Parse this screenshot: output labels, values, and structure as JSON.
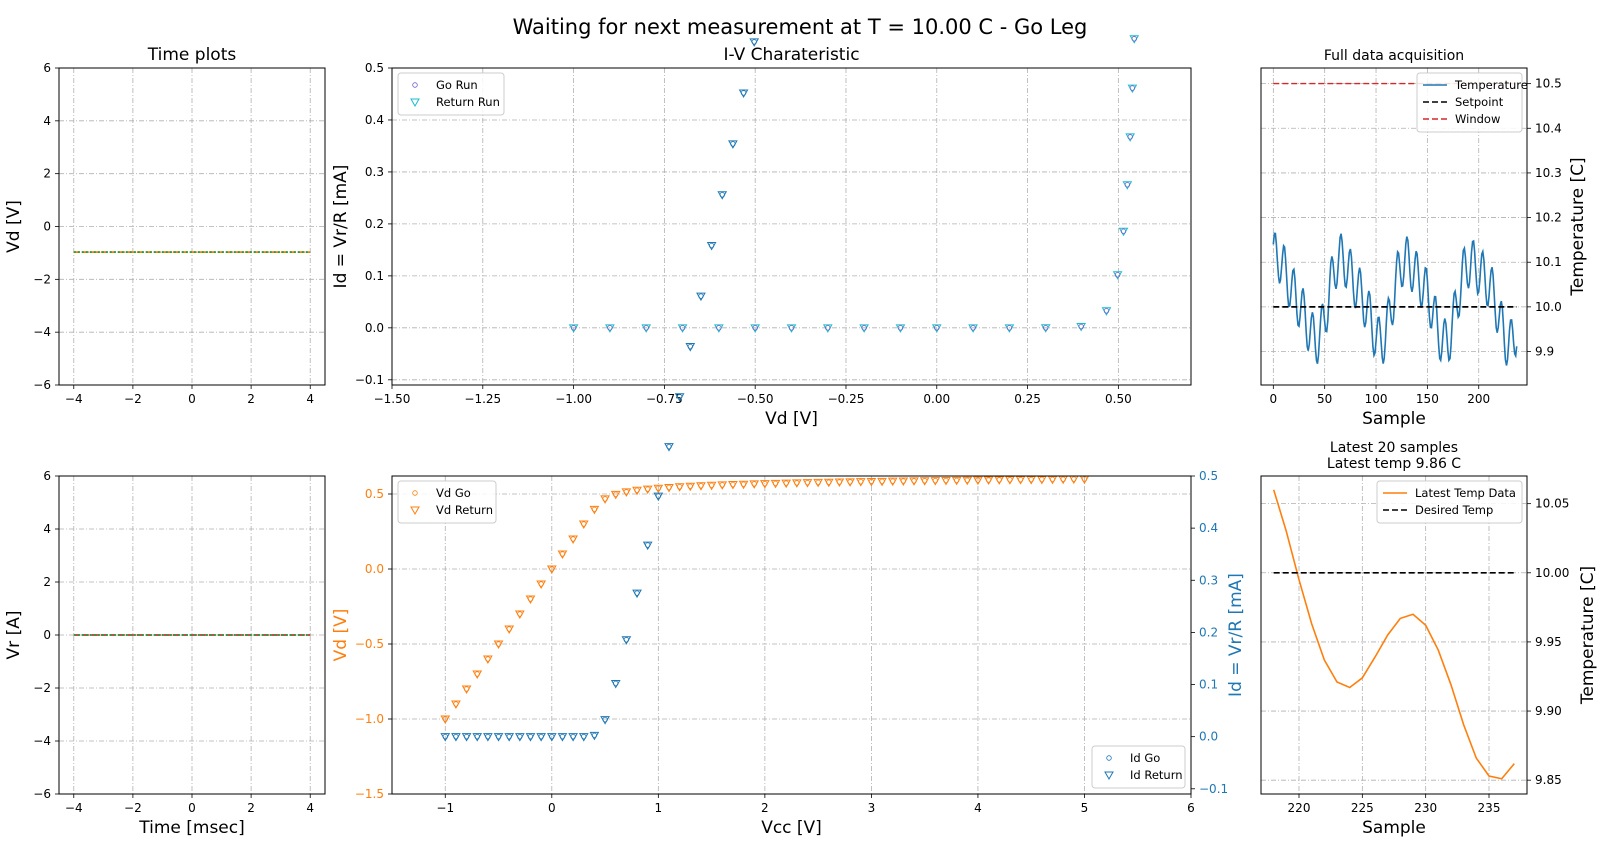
{
  "suptitle": "Waiting for next measurement at T = 10.00 C - Go Leg",
  "chart_data": [
    {
      "id": "time_vd",
      "type": "line",
      "title": "Time plots",
      "xlabel": "",
      "ylabel": "Vd [V]",
      "xlim": [
        -4.5,
        4.5
      ],
      "ylim": [
        -6,
        6
      ],
      "xticks": [
        -4,
        -2,
        0,
        2,
        4
      ],
      "xtick_labels": [
        "−4",
        "−2",
        "0",
        "2",
        "4"
      ],
      "yticks": [
        -6,
        -4,
        -2,
        0,
        2,
        4,
        6
      ],
      "ytick_labels": [
        "−6",
        "−4",
        "−2",
        "0",
        "2",
        "4",
        "6"
      ],
      "grid": true,
      "series": [
        {
          "color": "#1f77b4",
          "style": "dotted",
          "x": [
            -4,
            4
          ],
          "y": [
            -0.97,
            -0.97
          ]
        },
        {
          "color": "#ff7f0e",
          "style": "dashed",
          "x": [
            -4,
            4
          ],
          "y": [
            -0.97,
            -0.97
          ]
        },
        {
          "color": "#2ca02c",
          "style": "dotted",
          "x": [
            -4,
            4
          ],
          "y": [
            -0.97,
            -0.97
          ]
        }
      ]
    },
    {
      "id": "time_vr",
      "type": "line",
      "title": "",
      "xlabel": "Time [msec]",
      "ylabel": "Vr [A]",
      "xlim": [
        -4.5,
        4.5
      ],
      "ylim": [
        -6,
        6
      ],
      "xticks": [
        -4,
        -2,
        0,
        2,
        4
      ],
      "xtick_labels": [
        "−4",
        "−2",
        "0",
        "2",
        "4"
      ],
      "yticks": [
        -6,
        -4,
        -2,
        0,
        2,
        4,
        6
      ],
      "ytick_labels": [
        "−6",
        "−4",
        "−2",
        "0",
        "2",
        "4",
        "6"
      ],
      "grid": true,
      "series": [
        {
          "color": "#d62728",
          "style": "dashed",
          "x": [
            -4,
            4
          ],
          "y": [
            0.0,
            0.0
          ]
        },
        {
          "color": "#7060c8",
          "style": "dotted",
          "x": [
            -4,
            4
          ],
          "y": [
            0.0,
            0.0
          ]
        },
        {
          "color": "#2ca02c",
          "style": "dotted",
          "x": [
            -4,
            4
          ],
          "y": [
            0.0,
            0.0
          ]
        }
      ]
    },
    {
      "id": "iv",
      "type": "scatter",
      "title": "I-V Charateristic",
      "xlabel": "Vd [V]",
      "ylabel": "Id = Vr/R [mA]",
      "xlim": [
        -1.5,
        0.7
      ],
      "ylim": [
        -0.11,
        0.5
      ],
      "xticks": [
        -1.5,
        -1.25,
        -1.0,
        -0.75,
        -0.5,
        -0.25,
        0.0,
        0.25,
        0.5
      ],
      "xtick_labels": [
        "−1.50",
        "−1.25",
        "−1.00",
        "−0.75",
        "−0.50",
        "−0.25",
        "0.00",
        "0.25",
        "0.50"
      ],
      "yticks": [
        -0.1,
        0.0,
        0.1,
        0.2,
        0.3,
        0.4,
        0.5
      ],
      "ytick_labels": [
        "−0.1",
        "0.0",
        "0.1",
        "0.2",
        "0.3",
        "0.4",
        "0.5"
      ],
      "grid": true,
      "legend": {
        "position": "top-left",
        "entries": [
          "Go Run",
          "Return Run"
        ]
      },
      "series": [
        {
          "name": "Go Run",
          "marker": "circle",
          "color": "#7060c8"
        },
        {
          "name": "Return Run",
          "marker": "triangle",
          "color": "#17becf"
        }
      ]
    },
    {
      "id": "vcc",
      "type": "scatter",
      "title": "",
      "xlabel": "Vcc [V]",
      "ylabel": "Vd [V]",
      "ylabel_color": "#ff7f0e",
      "y2label": "Id = Vr/R [mA]",
      "y2label_color": "#1f77b4",
      "xlim": [
        -1.5,
        6
      ],
      "ylim": [
        -1.5,
        0.62
      ],
      "y2lim": [
        -0.11,
        0.5
      ],
      "xticks": [
        -1,
        0,
        1,
        2,
        3,
        4,
        5,
        6
      ],
      "xtick_labels": [
        "−1",
        "0",
        "1",
        "2",
        "3",
        "4",
        "5",
        "6"
      ],
      "yticks": [
        -1.5,
        -1.0,
        -0.5,
        0.0,
        0.5
      ],
      "ytick_labels": [
        "−1.5",
        "−1.0",
        "−0.5",
        "0.0",
        "0.5"
      ],
      "y2ticks": [
        -0.1,
        0.0,
        0.1,
        0.2,
        0.3,
        0.4,
        0.5
      ],
      "y2tick_labels": [
        "−0.1",
        "0.0",
        "0.1",
        "0.2",
        "0.3",
        "0.4",
        "0.5"
      ],
      "grid": true,
      "legend": {
        "position": "top-left",
        "entries": [
          "Vd Go",
          "Vd Return"
        ]
      },
      "legend2": {
        "position": "bottom-right",
        "entries": [
          "Id Go",
          "Id Return"
        ]
      },
      "series": [
        {
          "name": "Vd Go",
          "marker": "circle",
          "color": "#ff7f0e",
          "axis": "left"
        },
        {
          "name": "Vd Return",
          "marker": "triangle",
          "color": "#ff7f0e",
          "axis": "left"
        },
        {
          "name": "Id Go",
          "marker": "circle",
          "color": "#1f77b4",
          "axis": "right"
        },
        {
          "name": "Id Return",
          "marker": "triangle",
          "color": "#1f77b4",
          "axis": "right"
        }
      ]
    },
    {
      "id": "full",
      "type": "line",
      "title": "Full data acquisition",
      "xlabel": "Sample",
      "ylabel": "Temperature [C]",
      "xlim": [
        -12,
        247
      ],
      "ylim": [
        9.825,
        10.535
      ],
      "xticks": [
        0,
        50,
        100,
        150,
        200
      ],
      "xtick_labels": [
        "0",
        "50",
        "100",
        "150",
        "200"
      ],
      "yticks": [
        9.9,
        10.0,
        10.1,
        10.2,
        10.3,
        10.4,
        10.5
      ],
      "ytick_labels": [
        "9.9",
        "10.0",
        "10.1",
        "10.2",
        "10.3",
        "10.4",
        "10.5"
      ],
      "grid": true,
      "legend": {
        "position": "top-right",
        "entries": [
          "Temperature",
          "Setpoint",
          "Window"
        ]
      },
      "series": [
        {
          "name": "Temperature",
          "color": "#1f77b4",
          "style": "solid"
        },
        {
          "name": "Setpoint",
          "color": "#000000",
          "style": "dashed",
          "x": [
            0,
            237
          ],
          "y": [
            10.0,
            10.0
          ]
        },
        {
          "name": "Window",
          "color": "#d62728",
          "style": "dashed",
          "x": [
            0,
            237
          ],
          "y": [
            10.5,
            10.5
          ]
        }
      ]
    },
    {
      "id": "latest",
      "type": "line",
      "title": "Latest 20 samples",
      "subtitle": "Latest temp 9.86 C",
      "xlabel": "Sample",
      "ylabel": "Temperature [C]",
      "xlim": [
        217,
        238
      ],
      "ylim": [
        9.84,
        10.07
      ],
      "xticks": [
        220,
        225,
        230,
        235
      ],
      "xtick_labels": [
        "220",
        "225",
        "230",
        "235"
      ],
      "yticks": [
        9.85,
        9.9,
        9.95,
        10.0,
        10.05
      ],
      "ytick_labels": [
        "9.85",
        "9.90",
        "9.95",
        "10.00",
        "10.05"
      ],
      "grid": true,
      "legend": {
        "position": "top-right",
        "entries": [
          "Latest Temp Data",
          "Desired Temp"
        ]
      },
      "series": [
        {
          "name": "Latest Temp Data",
          "color": "#ff7f0e",
          "style": "solid",
          "x": [
            218,
            219,
            220,
            221,
            222,
            223,
            224,
            225,
            226,
            227,
            228,
            229,
            230,
            231,
            232,
            233,
            234,
            235,
            236,
            237
          ],
          "y": [
            10.06,
            10.03,
            9.995,
            9.963,
            9.937,
            9.921,
            9.917,
            9.924,
            9.939,
            9.955,
            9.967,
            9.97,
            9.962,
            9.944,
            9.919,
            9.89,
            9.866,
            9.853,
            9.851,
            9.862
          ]
        },
        {
          "name": "Desired Temp",
          "color": "#000000",
          "style": "dashed",
          "x": [
            218,
            237
          ],
          "y": [
            10.0,
            10.0
          ]
        }
      ]
    }
  ]
}
